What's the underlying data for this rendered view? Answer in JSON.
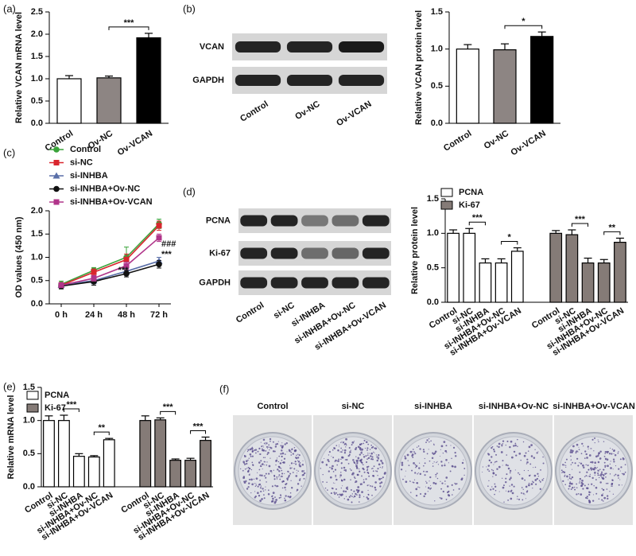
{
  "chart_data": [
    {
      "panel": "(a)",
      "type": "bar",
      "categories": [
        "Control",
        "Ov-NC",
        "Ov-VCAN"
      ],
      "values": [
        1.0,
        1.02,
        1.92
      ],
      "errors": [
        0.07,
        0.04,
        0.1
      ],
      "colors": [
        "#ffffff",
        "#8d8583",
        "#000000"
      ],
      "ylabel": "Relative VCAN mRNA level",
      "ylim": [
        0,
        2.5
      ],
      "yticks": [
        {
          "value": 0,
          "label": "0.0"
        },
        0.5,
        {
          "value": 1,
          "label": "1.0"
        },
        1.5,
        {
          "value": 2,
          "label": "2.0"
        },
        2.5
      ],
      "annotations": [
        "***"
      ]
    },
    {
      "panel": "(b)",
      "type": "bar",
      "blot": {
        "rows": [
          "VCAN",
          "GAPDH"
        ],
        "lanes": [
          "Control",
          "Ov-NC",
          "Ov-VCAN"
        ]
      },
      "categories": [
        "Control",
        "Ov-NC",
        "Ov-VCAN"
      ],
      "values": [
        1.0,
        0.99,
        1.17
      ],
      "errors": [
        0.06,
        0.08,
        0.06
      ],
      "colors": [
        "#ffffff",
        "#8d8583",
        "#000000"
      ],
      "ylabel": "Relative VCAN protein level",
      "ylim": [
        0,
        1.5
      ],
      "yticks": [
        {
          "value": 0,
          "label": "0.0"
        },
        0.5,
        {
          "value": 1,
          "label": "1.0"
        },
        1.5
      ],
      "annotations": [
        "*"
      ]
    },
    {
      "panel": "(c)",
      "type": "line",
      "categories": [
        "0 h",
        "24 h",
        "48 h",
        "72 h"
      ],
      "series": [
        {
          "name": "Control",
          "color": "#3aa33a",
          "marker": "circle",
          "values": [
            0.42,
            0.72,
            1.0,
            1.72
          ],
          "errors": [
            0.07,
            0.06,
            0.22,
            0.1
          ]
        },
        {
          "name": "si-NC",
          "color": "#d9262e",
          "marker": "square",
          "values": [
            0.4,
            0.68,
            0.95,
            1.68
          ],
          "errors": [
            0.06,
            0.07,
            0.12,
            0.1
          ]
        },
        {
          "name": "si-INHBA",
          "color": "#5a6fa8",
          "marker": "triangle",
          "values": [
            0.4,
            0.5,
            0.7,
            0.92
          ],
          "errors": [
            0.05,
            0.07,
            0.06,
            0.08
          ]
        },
        {
          "name": "si-INHBA+Ov-NC",
          "color": "#111111",
          "marker": "circle",
          "values": [
            0.38,
            0.48,
            0.65,
            0.85
          ],
          "errors": [
            0.06,
            0.08,
            0.07,
            0.08
          ]
        },
        {
          "name": "si-INHBA+Ov-VCAN",
          "color": "#b0358a",
          "marker": "square",
          "values": [
            0.4,
            0.55,
            0.82,
            1.42
          ],
          "errors": [
            0.05,
            0.06,
            0.08,
            0.08
          ]
        }
      ],
      "ylabel": "OD values (450 nm)",
      "ylim": [
        0,
        2
      ],
      "yticks": [
        {
          "value": 0,
          "label": "0.0"
        },
        0.5,
        {
          "value": 1,
          "label": "1.0"
        },
        1.5,
        {
          "value": 2,
          "label": "2.0"
        }
      ],
      "annotations": [
        "***",
        "###",
        "***"
      ]
    },
    {
      "panel": "(d)",
      "type": "grouped_bar",
      "blot": {
        "rows": [
          "PCNA",
          "Ki-67",
          "GAPDH"
        ],
        "lanes": [
          "Control",
          "si-NC",
          "si-INHBA",
          "si-INHBA+Ov-NC",
          "si-INHBA+Ov-VCAN"
        ]
      },
      "categories": [
        "Control",
        "si-NC",
        "si-INHBA",
        "si-INHBA+Ov-NC",
        "si-INHBA+Ov-VCAN"
      ],
      "series": [
        {
          "name": "PCNA",
          "color": "#ffffff",
          "values": [
            1.0,
            1.0,
            0.57,
            0.57,
            0.74
          ],
          "errors": [
            0.05,
            0.07,
            0.06,
            0.06,
            0.05
          ]
        },
        {
          "name": "Ki-67",
          "color": "#857b77",
          "values": [
            1.0,
            0.98,
            0.57,
            0.57,
            0.87
          ],
          "errors": [
            0.04,
            0.07,
            0.07,
            0.05,
            0.06
          ]
        }
      ],
      "ylabel": "Relative protein level",
      "ylim": [
        0,
        1.5
      ],
      "yticks": [
        {
          "value": 0,
          "label": "0.0"
        },
        0.5,
        {
          "value": 1,
          "label": "1.0"
        },
        1.5
      ],
      "annotations": [
        "***",
        "*",
        "***",
        "**"
      ]
    },
    {
      "panel": "(e)",
      "type": "grouped_bar",
      "categories": [
        "Control",
        "si-NC",
        "si-INHBA",
        "si-INHBA+Ov-NC",
        "si-INHBA+Ov-VCAN"
      ],
      "series": [
        {
          "name": "PCNA",
          "color": "#ffffff",
          "values": [
            1.0,
            1.0,
            0.46,
            0.45,
            0.71
          ],
          "errors": [
            0.07,
            0.08,
            0.04,
            0.02,
            0.02
          ]
        },
        {
          "name": "Ki-67",
          "color": "#857b77",
          "values": [
            1.0,
            1.01,
            0.4,
            0.4,
            0.7
          ],
          "errors": [
            0.07,
            0.03,
            0.02,
            0.03,
            0.05
          ]
        }
      ],
      "ylabel": "Relative mRNA level",
      "ylim": [
        0,
        1.5
      ],
      "yticks": [
        {
          "value": 0,
          "label": "0.0"
        },
        0.5,
        {
          "value": 1,
          "label": "1.0"
        },
        1.5
      ],
      "annotations": [
        "***",
        "**",
        "***",
        "***"
      ]
    },
    {
      "panel": "(f)",
      "type": "image_grid",
      "labels": [
        "Control",
        "si-NC",
        "si-INHBA",
        "si-INHBA+Ov-NC",
        "si-INHBA+Ov-VCAN"
      ]
    }
  ]
}
